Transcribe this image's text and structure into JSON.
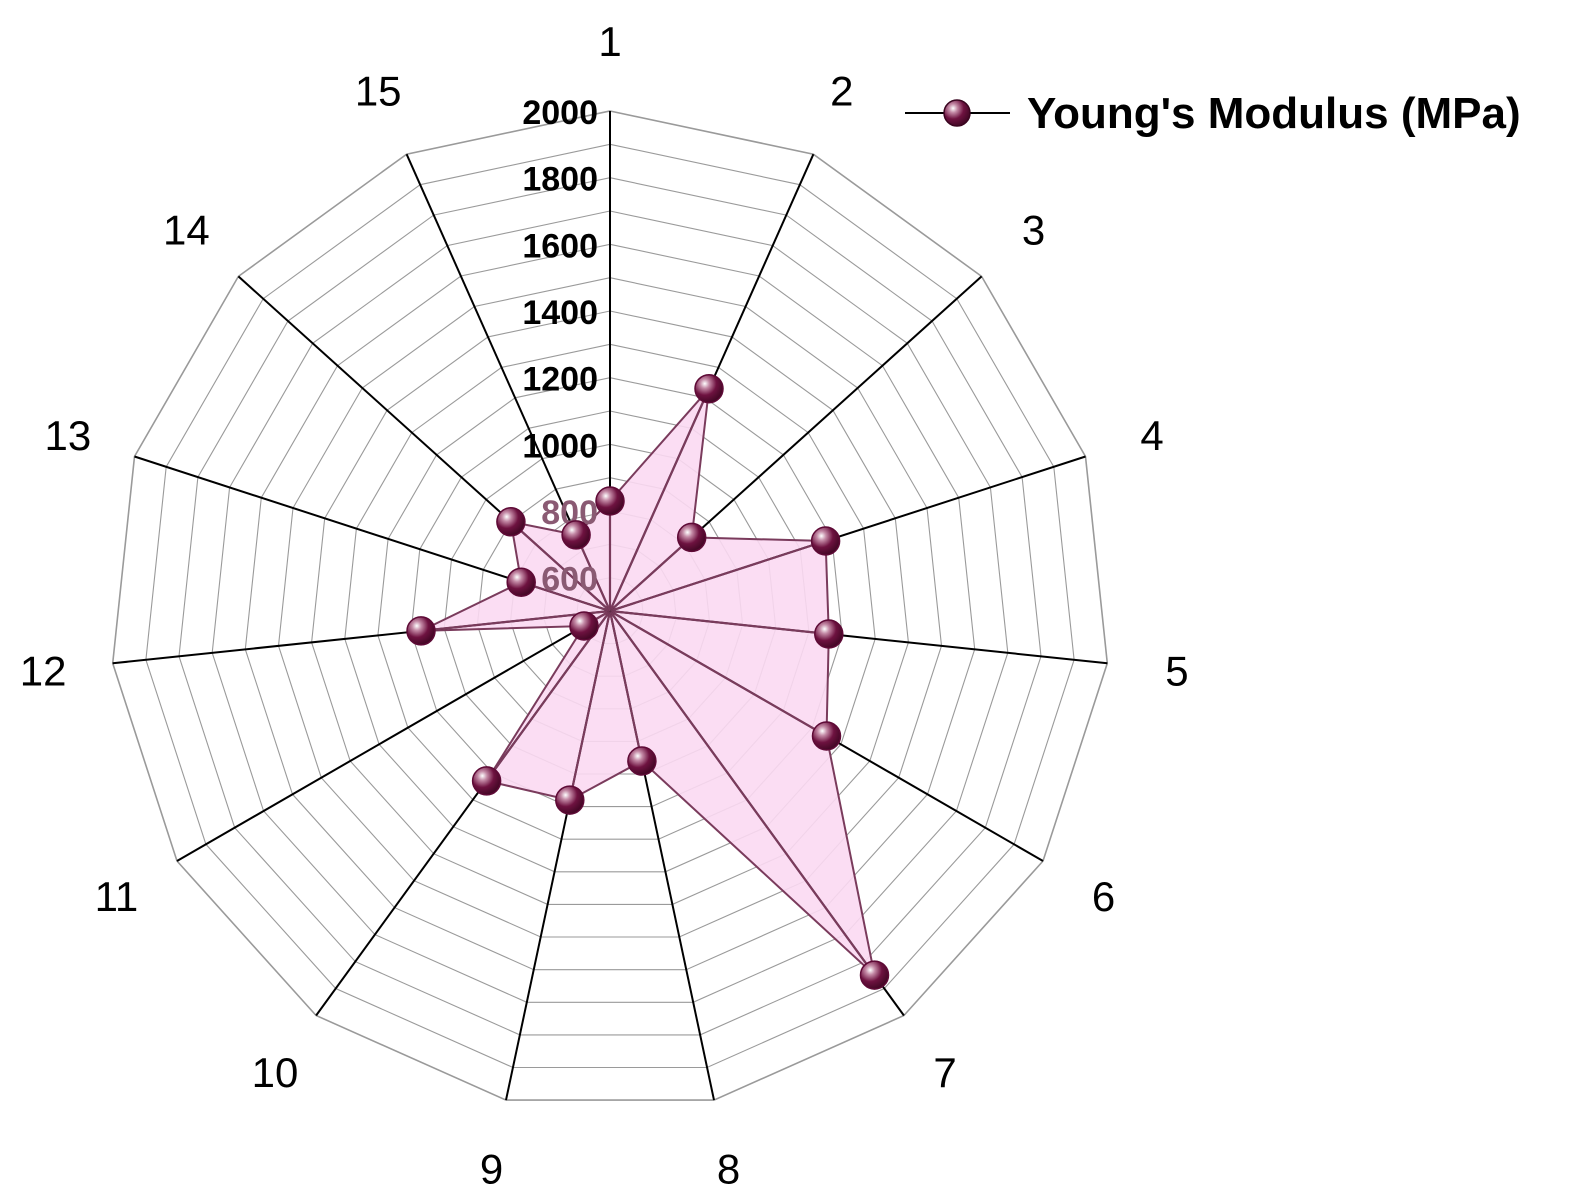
{
  "chart_data": {
    "type": "radar",
    "categories": [
      "1",
      "2",
      "3",
      "4",
      "5",
      "6",
      "7",
      "8",
      "9",
      "10",
      "11",
      "12",
      "13",
      "14",
      "15"
    ],
    "rlim": [
      500,
      2000
    ],
    "radial_ticks": [
      600,
      800,
      1000,
      1200,
      1400,
      1600,
      1800,
      2000
    ],
    "radial_tick_labels": [
      "600",
      "800",
      "1000",
      "1200",
      "1400",
      "1600",
      "1800",
      "2000"
    ],
    "grid": true,
    "legend_position": "top-right",
    "series": [
      {
        "name": "Young's Modulus (MPa)",
        "values": [
          830,
          1230,
          830,
          1180,
          1160,
          1250,
          1850,
          960,
          1080,
          1130,
          590,
          1070,
          780,
          900,
          750
        ]
      }
    ]
  },
  "colors": {
    "series_line": "#7a3b5c",
    "series_fill": "#fbd9f2",
    "marker": "#5e0a36",
    "spoke": "#000000",
    "grid": "#9a9a9a",
    "inner_tick_label": "#8a5a73",
    "outer_tick_label": "#000000"
  }
}
